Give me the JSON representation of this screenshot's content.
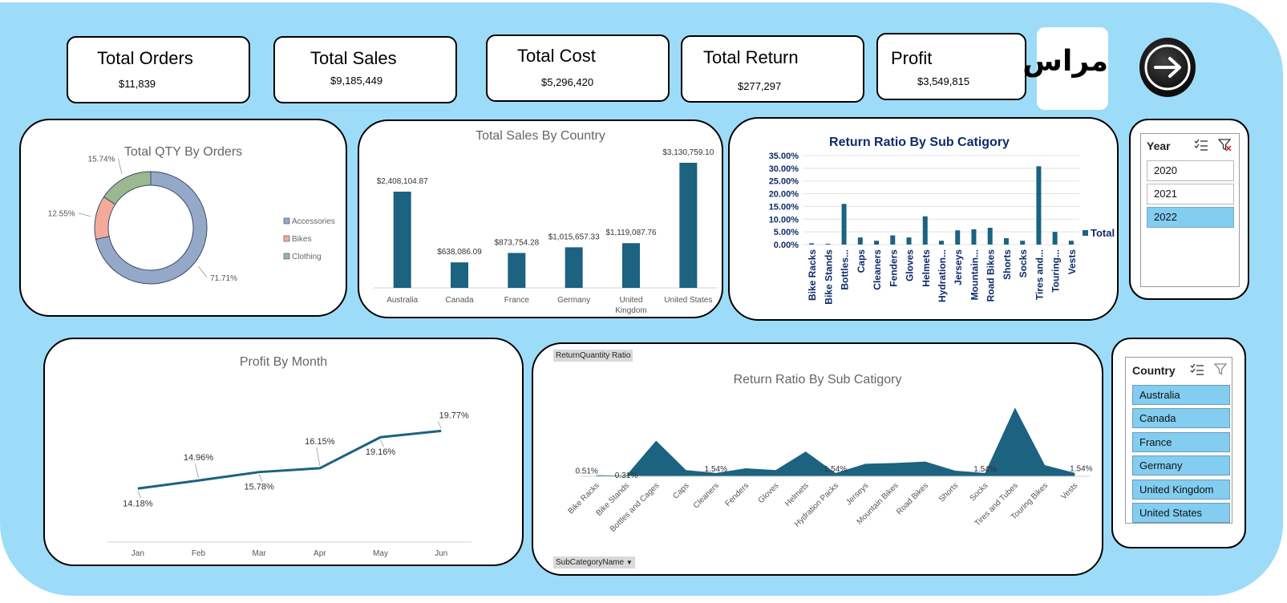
{
  "kpis": {
    "orders": {
      "title": "Total Orders",
      "value": "$11,839"
    },
    "sales": {
      "title": "Total Sales",
      "value": "$9,185,449"
    },
    "cost": {
      "title": "Total Cost",
      "value": "$5,296,420"
    },
    "returns": {
      "title": "Total Return",
      "value": "$277,297"
    },
    "profit": {
      "title": "Profit",
      "value": "$3,549,815"
    }
  },
  "logo": {
    "text": "مراس"
  },
  "nav": {
    "icon": "arrow-right-icon"
  },
  "donut": {
    "chart_data": {
      "type": "pie",
      "title": "Total QTY By Orders",
      "categories": [
        "Accessories",
        "Bikes",
        "Clothing"
      ],
      "values": [
        71.71,
        12.55,
        15.74
      ],
      "labels": [
        "71.71%",
        "12.55%",
        "15.74%"
      ],
      "colors": [
        "#93a9c7",
        "#f4aa9a",
        "#9bb890"
      ],
      "legend": "right"
    }
  },
  "sales_country": {
    "chart_data": {
      "type": "bar",
      "title": "Total Sales By Country",
      "categories": [
        "Australia",
        "Canada",
        "France",
        "Germany",
        "United Kingdom",
        "United States"
      ],
      "category_lines": [
        [
          "Australia"
        ],
        [
          "Canada"
        ],
        [
          "France"
        ],
        [
          "Germany"
        ],
        [
          "United",
          "Kingdom"
        ],
        [
          "United States"
        ]
      ],
      "values": [
        2408104.87,
        638086.09,
        873754.28,
        1015657.33,
        1119087.76,
        3130759.1
      ],
      "labels": [
        "$2,408,104.87",
        "$638,086.09",
        "$873,754.28",
        "$1,015,657.33",
        "$1,119,087.76",
        "$3,130,759.10"
      ],
      "color": "#1c6281"
    }
  },
  "return_bar": {
    "chart_data": {
      "type": "bar",
      "title": "Return Ratio By Sub Catigory",
      "categories": [
        "Bike Racks",
        "Bike Stands",
        "Bottles...",
        "Caps",
        "Cleaners",
        "Fenders",
        "Gloves",
        "Helmets",
        "Hydration...",
        "Jerseys",
        "Mountain...",
        "Road Bikes",
        "Shorts",
        "Socks",
        "Tires and...",
        "Touring...",
        "Vests"
      ],
      "values": [
        0.51,
        0.31,
        16.0,
        2.8,
        1.5,
        3.6,
        2.8,
        11.1,
        1.5,
        5.6,
        6.0,
        6.6,
        2.5,
        1.5,
        30.8,
        5.0,
        1.5
      ],
      "yticks": [
        "0.00%",
        "5.00%",
        "10.00%",
        "15.00%",
        "20.00%",
        "25.00%",
        "30.00%",
        "35.00%"
      ],
      "ylim": [
        0,
        35
      ],
      "legend": "Total",
      "color": "#1c6281"
    }
  },
  "profit_month": {
    "chart_data": {
      "type": "line",
      "title": "Profit By Month",
      "categories": [
        "Jan",
        "Feb",
        "Mar",
        "Apr",
        "May",
        "Jun"
      ],
      "values": [
        14.18,
        14.96,
        15.78,
        16.15,
        19.16,
        19.77
      ],
      "labels": [
        "14.18%",
        "14.96%",
        "15.78%",
        "16.15%",
        "19.16%",
        "19.77%"
      ],
      "color": "#1c6281"
    }
  },
  "return_area": {
    "field_button": "ReturnQuantity Ratio",
    "axis_button": "SubCategoryName",
    "chart_data": {
      "type": "area",
      "title": "Return Ratio By Sub Catigory",
      "categories": [
        "Bike Racks",
        "Bike Stands",
        "Bottles and Cages",
        "Caps",
        "Cleaners",
        "Fenders",
        "Gloves",
        "Helmets",
        "Hydration Packs",
        "Jerseys",
        "Mountain Bikes",
        "Road Bikes",
        "Shorts",
        "Socks",
        "Tires and Tubes",
        "Touring Bikes",
        "Vests"
      ],
      "values": [
        0.51,
        0.31,
        16.0,
        2.8,
        1.5,
        3.6,
        2.8,
        11.1,
        1.5,
        5.6,
        6.0,
        6.6,
        2.5,
        1.5,
        30.8,
        5.0,
        1.54
      ],
      "labels": [
        "0.51%",
        "0.31%",
        "",
        "",
        "1.54%",
        "",
        "",
        "",
        "1.54%",
        "",
        "",
        "",
        "",
        "1.54%",
        "",
        "",
        "1.54%"
      ],
      "color": "#1c6281"
    }
  },
  "year_slicer": {
    "title": "Year",
    "items": [
      "2020",
      "2021",
      "2022"
    ],
    "selected": "2022"
  },
  "country_slicer": {
    "title": "Country",
    "items": [
      "Australia",
      "Canada",
      "France",
      "Germany",
      "United Kingdom",
      "United States"
    ]
  }
}
